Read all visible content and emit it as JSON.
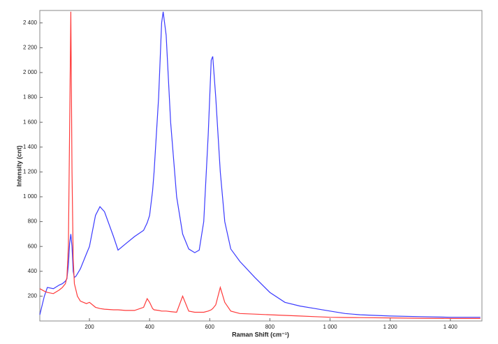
{
  "chart_data": {
    "type": "line",
    "x_label": "Raman Shift (cm⁻¹)",
    "y_label": "Intensity (cnt)",
    "x": [
      35,
      50,
      60,
      80,
      100,
      110,
      120,
      125,
      130,
      134,
      138,
      142,
      146,
      150,
      155,
      160,
      170,
      190,
      200,
      220,
      235,
      250,
      280,
      295,
      320,
      350,
      380,
      392,
      400,
      410,
      415,
      430,
      440,
      445,
      455,
      470,
      490,
      510,
      530,
      550,
      565,
      580,
      595,
      605,
      610,
      620,
      635,
      650,
      670,
      700,
      750,
      800,
      850,
      900,
      950,
      1000,
      1050,
      1100,
      1200,
      1300,
      1400,
      1500
    ],
    "series": [
      {
        "color": "#3a3aff",
        "values": [
          50,
          200,
          270,
          260,
          290,
          300,
          320,
          340,
          450,
          620,
          700,
          600,
          400,
          350,
          360,
          380,
          420,
          540,
          600,
          850,
          920,
          880,
          680,
          570,
          620,
          680,
          730,
          790,
          850,
          1050,
          1200,
          1800,
          2400,
          2490,
          2300,
          1600,
          1000,
          700,
          580,
          550,
          570,
          800,
          1500,
          2100,
          2130,
          1800,
          1200,
          800,
          580,
          480,
          350,
          230,
          150,
          120,
          100,
          80,
          60,
          50,
          40,
          35,
          30,
          30
        ]
      },
      {
        "color": "#ff3a3a",
        "values": [
          260,
          240,
          230,
          220,
          250,
          270,
          300,
          350,
          600,
          1500,
          2490,
          1200,
          500,
          300,
          250,
          200,
          160,
          140,
          150,
          110,
          100,
          95,
          90,
          90,
          85,
          85,
          110,
          180,
          150,
          100,
          90,
          85,
          80,
          80,
          80,
          75,
          70,
          200,
          80,
          70,
          70,
          70,
          80,
          90,
          100,
          130,
          270,
          150,
          80,
          60,
          55,
          50,
          45,
          40,
          35,
          30,
          28,
          27,
          25,
          22,
          20,
          20
        ]
      }
    ],
    "xlim": [
      35,
      1505
    ],
    "ylim": [
      0,
      2500
    ],
    "xticks": [
      200,
      400,
      600,
      800,
      {
        "value": 1000,
        "label": "1 000"
      },
      {
        "value": 1200,
        "label": "1 200"
      },
      {
        "value": 1400,
        "label": "1 400"
      }
    ],
    "yticks": [
      200,
      400,
      600,
      800,
      {
        "value": 1000,
        "label": "1 000"
      },
      {
        "value": 1200,
        "label": "1 200"
      },
      {
        "value": 1400,
        "label": "1 400"
      },
      {
        "value": 1600,
        "label": "1 600"
      },
      {
        "value": 1800,
        "label": "1 800"
      },
      {
        "value": 2000,
        "label": "2 000"
      },
      {
        "value": 2200,
        "label": "2 200"
      },
      {
        "value": 2400,
        "label": "2 400"
      }
    ]
  }
}
